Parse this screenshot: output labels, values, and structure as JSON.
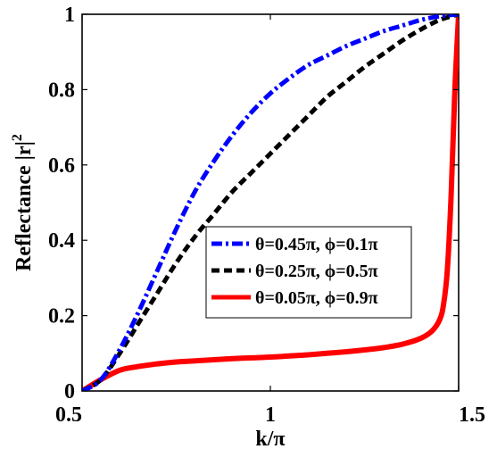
{
  "chart_data": {
    "type": "line",
    "xlabel": "k/π",
    "ylabel": "Reflectance |r|",
    "ylabel_superscript": "2",
    "xlim": [
      0.5,
      1.5
    ],
    "ylim": [
      0,
      1
    ],
    "xticks": [
      0.5,
      1,
      1.5
    ],
    "xtick_labels": [
      "0.5",
      "1",
      "1.5"
    ],
    "yticks": [
      0,
      0.2,
      0.4,
      0.6,
      0.8,
      1
    ],
    "ytick_labels": [
      "0",
      "0.2",
      "0.4",
      "0.6",
      "0.8",
      "1"
    ],
    "grid": false,
    "legend_position": "center-right",
    "series": [
      {
        "name": "θ=0.45π, ϕ=0.1π",
        "color": "#0000ff",
        "style": "dash-dot",
        "x": [
          0.5,
          0.55,
          0.6,
          0.65,
          0.7,
          0.75,
          0.8,
          0.85,
          0.9,
          0.95,
          1.0,
          1.05,
          1.1,
          1.15,
          1.2,
          1.25,
          1.3,
          1.35,
          1.4,
          1.45,
          1.5
        ],
        "y": [
          0.0,
          0.03,
          0.11,
          0.21,
          0.32,
          0.43,
          0.53,
          0.61,
          0.68,
          0.74,
          0.79,
          0.83,
          0.865,
          0.89,
          0.915,
          0.935,
          0.955,
          0.97,
          0.985,
          0.995,
          1.0
        ]
      },
      {
        "name": "θ=0.25π, ϕ=0.5π",
        "color": "#000000",
        "style": "dashed",
        "x": [
          0.5,
          0.55,
          0.6,
          0.65,
          0.7,
          0.75,
          0.8,
          0.85,
          0.9,
          0.95,
          1.0,
          1.05,
          1.1,
          1.15,
          1.2,
          1.25,
          1.3,
          1.35,
          1.4,
          1.45,
          1.5
        ],
        "y": [
          0.0,
          0.03,
          0.1,
          0.18,
          0.26,
          0.34,
          0.41,
          0.47,
          0.53,
          0.58,
          0.63,
          0.68,
          0.73,
          0.78,
          0.82,
          0.86,
          0.895,
          0.93,
          0.96,
          0.985,
          1.0
        ]
      },
      {
        "name": "θ=0.05π, ϕ=0.9π",
        "color": "#ff0000",
        "style": "solid",
        "x": [
          0.5,
          0.55,
          0.6,
          0.65,
          0.7,
          0.75,
          0.8,
          0.85,
          0.9,
          0.95,
          1.0,
          1.05,
          1.1,
          1.15,
          1.2,
          1.25,
          1.3,
          1.35,
          1.4,
          1.43,
          1.45,
          1.46,
          1.47,
          1.48,
          1.49,
          1.5
        ],
        "y": [
          0.0,
          0.03,
          0.055,
          0.065,
          0.072,
          0.077,
          0.08,
          0.083,
          0.086,
          0.088,
          0.09,
          0.093,
          0.096,
          0.1,
          0.104,
          0.109,
          0.115,
          0.124,
          0.14,
          0.16,
          0.19,
          0.23,
          0.32,
          0.52,
          0.8,
          1.0
        ]
      }
    ]
  }
}
